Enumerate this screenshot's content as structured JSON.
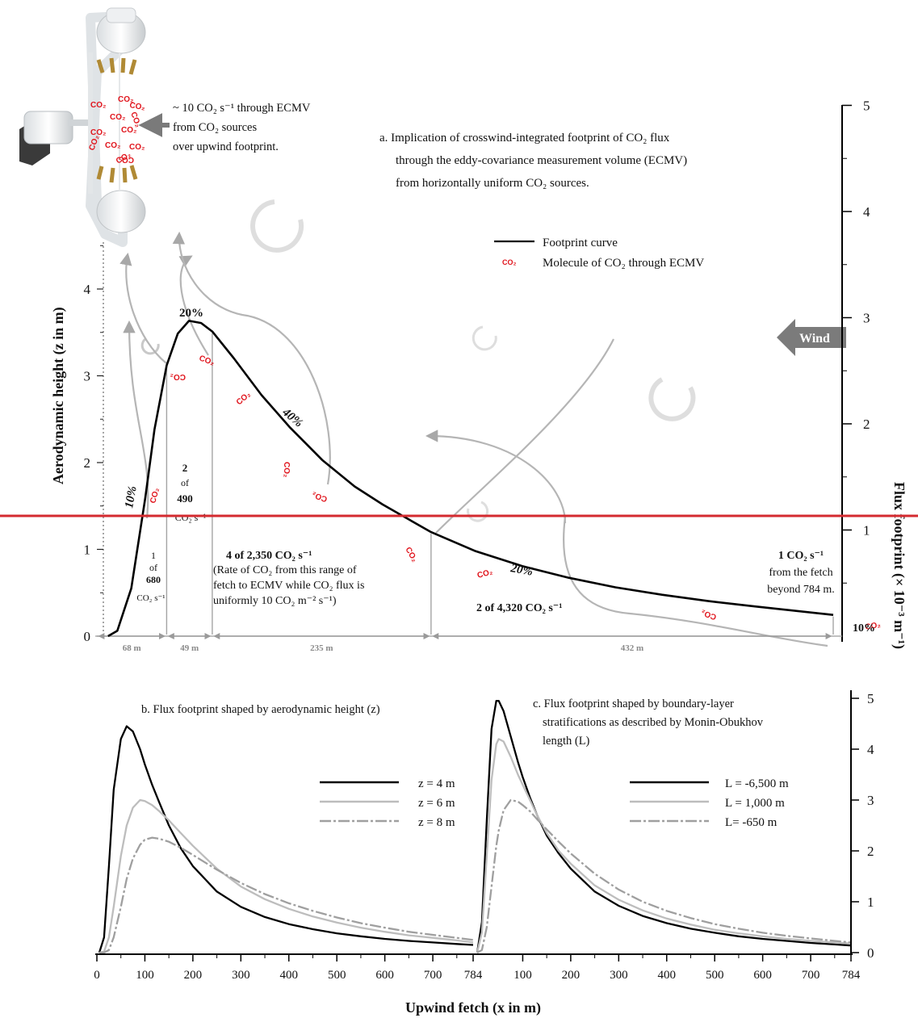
{
  "instrument": {
    "molecules": [
      "CO₂",
      "CO₂",
      "CO₂",
      "CO₂",
      "CO₂",
      "CO₂",
      "CO₂",
      "CO₂",
      "CO₂",
      "CO₂",
      "CO₂",
      "CO₂"
    ],
    "note_lines": [
      "~ 10 CO₂ s⁻¹ through ECMV",
      "from CO₂ sources",
      "over upwind footprint."
    ]
  },
  "panel_a": {
    "title_lines": [
      "a. Implication of crosswind-integrated footprint of CO₂ flux",
      "through the eddy-covariance measurement volume (ECMV)",
      "from horizontally uniform CO₂ sources."
    ],
    "legend": {
      "line_label": "Footprint curve",
      "mol_symbol": "CO₂",
      "mol_label": "Molecule of CO₂ through ECMV"
    },
    "wind_label": "Wind",
    "left_axis_label": "Aerodynamic height (z in m)",
    "left_ticks": [
      "0",
      "1",
      "2",
      "3",
      "4"
    ],
    "right_axis_label": "Flux footprint (× 10⁻³ m⁻¹)",
    "right_ticks": [
      "1",
      "2",
      "3",
      "4",
      "5"
    ],
    "percent_labels": [
      "10%",
      "20%",
      "40%",
      "20%",
      "10%"
    ],
    "segment_lengths": [
      "68 m",
      "49 m",
      "235 m",
      "432 m"
    ],
    "seg1": [
      "1",
      "of",
      "680",
      "CO₂ s⁻¹"
    ],
    "seg2": [
      "2",
      "of",
      "490",
      "CO₂ s⁻¹"
    ],
    "seg3_lines": [
      "4 of 2,350 CO₂ s⁻¹",
      "(Rate of CO₂ from this range of",
      "fetch to ECMV while CO₂ flux is",
      "uniformly 10 CO₂ m⁻² s⁻¹)"
    ],
    "seg4": "2 of 4,320 CO₂ s⁻¹",
    "beyond_lines": [
      "1 CO₂ s⁻¹",
      "from the fetch",
      "beyond 784 m."
    ],
    "end_mol": "CO₂",
    "molecules": [
      "CO₂",
      "CO₂",
      "CO₂",
      "CO₂",
      "CO₂",
      "CO₂",
      "CO₂",
      "CO₂",
      "CO₂",
      "CO₂"
    ]
  },
  "panel_b": {
    "title": "b. Flux footprint shaped by aerodynamic height (z)",
    "legend": [
      "z = 4 m",
      "z = 6 m",
      "z = 8 m"
    ]
  },
  "panel_c": {
    "title_lines": [
      "c. Flux footprint shaped by boundary-layer",
      "stratifications as described by Monin-Obukhov",
      "length (L)"
    ],
    "legend": [
      "L = -6,500 m",
      "L = 1,000 m",
      "L= -650 m"
    ]
  },
  "bottom_axis": {
    "label": "Upwind fetch (x in m)",
    "ticks": [
      "0",
      "100",
      "200",
      "300",
      "400",
      "500",
      "600",
      "700",
      "784"
    ],
    "right_ticks": [
      "0",
      "1",
      "2",
      "3",
      "4",
      "5"
    ]
  },
  "chart_data": [
    {
      "type": "line",
      "title": "a. Implication of crosswind-integrated footprint of CO₂ flux through the eddy-covariance measurement volume (ECMV) from horizontally uniform CO₂ sources.",
      "xlabel": "",
      "ylabel": "Aerodynamic height (z in m)",
      "y2label": "Flux footprint (× 10⁻³ m⁻¹)",
      "xlim": [
        0,
        784
      ],
      "ylim": [
        0,
        4
      ],
      "y2lim": [
        0,
        5
      ],
      "series": [
        {
          "name": "Footprint curve",
          "x": [
            5,
            15,
            30,
            45,
            55,
            68,
            80,
            92,
            105,
            117,
            140,
            170,
            200,
            235,
            270,
            300,
            352,
            400,
            450,
            500,
            550,
            600,
            650,
            700,
            784
          ],
          "y": [
            0.0,
            0.05,
            0.45,
            1.3,
            1.95,
            2.55,
            2.85,
            2.97,
            2.95,
            2.87,
            2.62,
            2.27,
            1.97,
            1.66,
            1.41,
            1.24,
            0.98,
            0.8,
            0.66,
            0.55,
            0.46,
            0.39,
            0.33,
            0.28,
            0.2
          ]
        }
      ],
      "fetch_boundaries": [
        68,
        117,
        352,
        784
      ],
      "segment_percents": [
        "10%",
        "20%",
        "40%",
        "20%",
        "10%"
      ],
      "legend_position": "top-right"
    },
    {
      "type": "line",
      "title": "b. Flux footprint shaped by aerodynamic height (z)",
      "xlabel": "Upwind fetch (x in m)",
      "ylabel": "",
      "xlim": [
        0,
        784
      ],
      "ylim": [
        0,
        5
      ],
      "x": [
        5,
        15,
        25,
        35,
        50,
        62,
        75,
        90,
        100,
        115,
        130,
        150,
        175,
        200,
        250,
        300,
        350,
        400,
        450,
        500,
        550,
        600,
        650,
        700,
        750,
        784
      ],
      "series": [
        {
          "name": "z = 4 m",
          "y": [
            0.0,
            0.3,
            1.7,
            3.2,
            4.2,
            4.45,
            4.35,
            4.0,
            3.7,
            3.3,
            2.95,
            2.5,
            2.05,
            1.7,
            1.2,
            0.9,
            0.7,
            0.56,
            0.46,
            0.38,
            0.32,
            0.27,
            0.23,
            0.2,
            0.17,
            0.15
          ]
        },
        {
          "name": "z = 6 m",
          "y": [
            0.0,
            0.02,
            0.3,
            0.9,
            1.9,
            2.5,
            2.85,
            3.0,
            2.98,
            2.9,
            2.78,
            2.6,
            2.35,
            2.1,
            1.65,
            1.3,
            1.05,
            0.86,
            0.71,
            0.59,
            0.49,
            0.41,
            0.34,
            0.29,
            0.24,
            0.2
          ]
        },
        {
          "name": "z = 8 m",
          "y": [
            0.0,
            0.0,
            0.05,
            0.3,
            0.9,
            1.45,
            1.85,
            2.12,
            2.22,
            2.26,
            2.24,
            2.18,
            2.06,
            1.92,
            1.63,
            1.37,
            1.15,
            0.97,
            0.82,
            0.69,
            0.58,
            0.49,
            0.41,
            0.35,
            0.29,
            0.25
          ]
        }
      ],
      "legend_position": "right"
    },
    {
      "type": "line",
      "title": "c. Flux footprint shaped by boundary-layer stratifications as described by Monin-Obukhov length (L)",
      "xlabel": "Upwind fetch (x in m)",
      "ylabel": "",
      "xlim": [
        0,
        784
      ],
      "ylim": [
        0,
        5
      ],
      "x": [
        5,
        15,
        25,
        35,
        45,
        50,
        60,
        75,
        90,
        100,
        115,
        130,
        150,
        175,
        200,
        250,
        300,
        350,
        400,
        450,
        500,
        550,
        600,
        650,
        700,
        750,
        784
      ],
      "series": [
        {
          "name": "L = -6,500 m",
          "y": [
            0.0,
            0.6,
            2.6,
            4.4,
            4.95,
            4.95,
            4.75,
            4.25,
            3.75,
            3.45,
            3.05,
            2.7,
            2.3,
            1.95,
            1.65,
            1.2,
            0.92,
            0.72,
            0.58,
            0.47,
            0.39,
            0.32,
            0.27,
            0.23,
            0.19,
            0.16,
            0.14
          ]
        },
        {
          "name": "L = 1,000 m",
          "y": [
            0.0,
            0.4,
            1.9,
            3.4,
            4.1,
            4.2,
            4.15,
            3.85,
            3.5,
            3.3,
            3.0,
            2.7,
            2.35,
            2.0,
            1.75,
            1.32,
            1.04,
            0.83,
            0.67,
            0.55,
            0.45,
            0.38,
            0.32,
            0.27,
            0.23,
            0.2,
            0.18
          ]
        },
        {
          "name": "L= -650 m",
          "y": [
            0.0,
            0.05,
            0.5,
            1.3,
            2.1,
            2.4,
            2.8,
            3.0,
            2.97,
            2.9,
            2.78,
            2.62,
            2.42,
            2.18,
            1.95,
            1.55,
            1.24,
            1.0,
            0.82,
            0.68,
            0.56,
            0.47,
            0.39,
            0.33,
            0.28,
            0.23,
            0.2
          ]
        }
      ],
      "legend_position": "right"
    }
  ]
}
